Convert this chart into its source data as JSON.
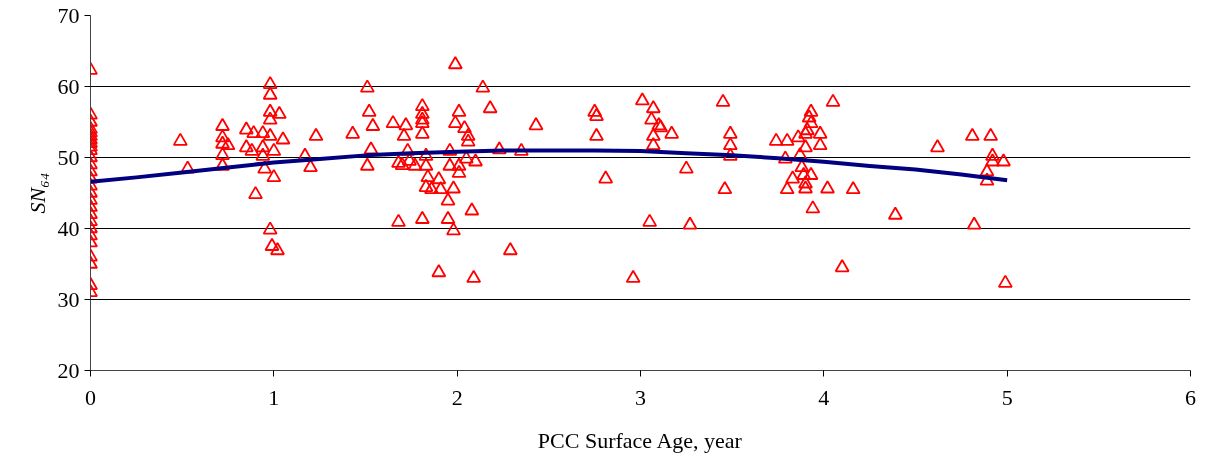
{
  "chart_data": {
    "type": "scatter",
    "xlabel": "PCC Surface Age, year",
    "ylabel": "SN₆₄",
    "xlim": [
      0,
      6
    ],
    "xticks": [
      0,
      1,
      2,
      3,
      4,
      5,
      6
    ],
    "ylim": [
      20,
      70
    ],
    "yticks": [
      20,
      30,
      40,
      50,
      60,
      70
    ],
    "grid": "y",
    "marker": "triangle",
    "series": [
      {
        "color": "#ff0000",
        "x": [
          0,
          0,
          0,
          0,
          0,
          0,
          0,
          0,
          0,
          0,
          0,
          0,
          0,
          0,
          0,
          0,
          0,
          0,
          0,
          0,
          0,
          0,
          0,
          0,
          0,
          0,
          0,
          0.49,
          0.53,
          0.72,
          0.72,
          0.72,
          0.75,
          0.72,
          0.72,
          0.85,
          0.89,
          0.94,
          0.85,
          0.88,
          0.94,
          0.94,
          0.9,
          0.98,
          0.98,
          0.98,
          0.98,
          1.03,
          0.98,
          1.0,
          1.05,
          0.95,
          1.0,
          0.98,
          0.99,
          1.02,
          1.17,
          1.2,
          1.23,
          1.43,
          1.51,
          1.52,
          1.54,
          1.53,
          1.51,
          1.65,
          1.68,
          1.68,
          1.7,
          1.72,
          1.71,
          1.73,
          1.74,
          1.77,
          1.81,
          1.81,
          1.81,
          1.81,
          1.81,
          1.81,
          1.83,
          1.83,
          1.84,
          1.83,
          1.86,
          1.9,
          1.91,
          1.9,
          1.95,
          1.95,
          1.98,
          1.98,
          1.96,
          1.96,
          1.99,
          1.99,
          2.01,
          2.01,
          2.01,
          2.04,
          2.06,
          2.06,
          2.05,
          2.1,
          2.08,
          2.09,
          2.14,
          2.18,
          2.23,
          2.29,
          2.35,
          2.43,
          2.75,
          2.76,
          2.76,
          2.81,
          2.96,
          3.01,
          3.05,
          3.07,
          3.06,
          3.1,
          3.11,
          3.07,
          3.07,
          3.17,
          3.25,
          3.27,
          3.45,
          3.49,
          3.49,
          3.49,
          3.46,
          3.74,
          3.8,
          3.79,
          3.8,
          3.83,
          3.86,
          3.87,
          3.88,
          3.89,
          3.9,
          3.9,
          3.93,
          3.9,
          3.9,
          3.92,
          3.93,
          3.93,
          3.91,
          3.98,
          3.98,
          3.94,
          4.02,
          4.05,
          4.1,
          4.16,
          4.39,
          4.62,
          4.81,
          4.82,
          4.91,
          4.92,
          4.92,
          4.98,
          4.89,
          4.89,
          4.99
        ],
        "values": [
          62.3,
          56,
          55,
          54,
          53.5,
          53,
          52.5,
          52,
          51.5,
          51,
          50,
          49,
          48,
          47,
          46,
          45,
          44,
          43,
          42,
          41,
          40,
          39,
          38,
          36,
          35,
          32,
          31,
          52.3,
          48.4,
          54.4,
          52.8,
          51.9,
          51.7,
          50.3,
          48.8,
          53.9,
          53.4,
          53.4,
          51.4,
          50.9,
          51.4,
          50.2,
          44.8,
          60.3,
          58.8,
          56.4,
          55.3,
          56.1,
          53.0,
          50.9,
          52.5,
          48.4,
          47.2,
          39.8,
          37.5,
          36.9,
          50.2,
          48.6,
          53.0,
          53.3,
          59.8,
          56.4,
          54.4,
          51.1,
          48.8,
          54.8,
          40.9,
          49.2,
          48.9,
          54.5,
          53.0,
          50.9,
          49.5,
          48.8,
          57.2,
          56.1,
          55.3,
          54.8,
          53.3,
          41.3,
          50.2,
          48.8,
          47.2,
          45.8,
          45.5,
          46.9,
          45.5,
          33.8,
          43.9,
          41.3,
          45.6,
          39.7,
          50.9,
          48.8,
          63.1,
          54.8,
          56.4,
          48.8,
          47.8,
          54.1,
          53.0,
          52.2,
          49.8,
          49.4,
          42.5,
          33.0,
          59.8,
          56.9,
          51.1,
          36.9,
          50.9,
          54.5,
          56.4,
          55.8,
          53.0,
          47.0,
          33.0,
          58.0,
          40.9,
          56.9,
          55.3,
          54.5,
          54.2,
          53.0,
          51.7,
          53.3,
          48.4,
          40.5,
          57.8,
          53.3,
          51.7,
          50.2,
          45.5,
          52.3,
          52.3,
          49.8,
          45.5,
          47.0,
          52.8,
          50.3,
          48.6,
          47.5,
          46.3,
          45.6,
          47.5,
          51.4,
          53.3,
          55.6,
          56.4,
          54.8,
          53.8,
          53.3,
          51.7,
          42.8,
          45.6,
          57.8,
          34.5,
          45.5,
          41.9,
          51.4,
          53.0,
          40.5,
          53.0,
          50.2,
          49.4,
          49.4,
          48.0,
          46.7,
          32.3
        ]
      },
      {
        "type": "line",
        "color": "#000080",
        "marker": "none",
        "x": [
          0,
          0.25,
          0.5,
          0.75,
          1,
          1.25,
          1.5,
          1.75,
          2,
          2.25,
          2.5,
          2.75,
          3,
          3.25,
          3.5,
          3.75,
          4,
          4.25,
          4.5,
          4.75,
          5
        ],
        "values": [
          46.6,
          47.2,
          47.9,
          48.6,
          49.3,
          49.8,
          50.3,
          50.6,
          50.8,
          51.0,
          51.0,
          51.0,
          50.9,
          50.6,
          50.3,
          49.9,
          49.4,
          48.8,
          48.3,
          47.6,
          46.8
        ]
      }
    ]
  }
}
